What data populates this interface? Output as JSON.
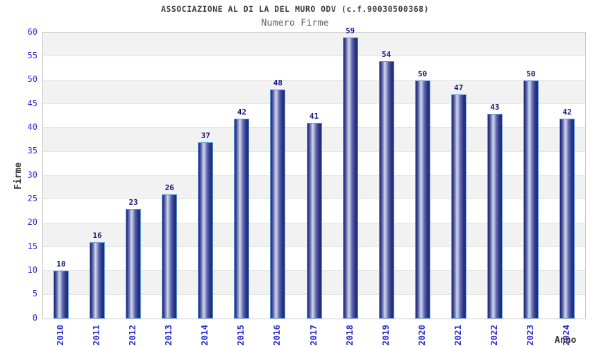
{
  "title": "ASSOCIAZIONE AL DI LA DEL MURO ODV (c.f.90030500368)",
  "subtitle": "Numero Firme",
  "chart_data": {
    "type": "bar",
    "title": "ASSOCIAZIONE AL DI LA DEL MURO ODV (c.f.90030500368)",
    "subtitle": "Numero Firme",
    "categories": [
      "2010",
      "2011",
      "2012",
      "2013",
      "2014",
      "2015",
      "2016",
      "2017",
      "2018",
      "2019",
      "2020",
      "2021",
      "2022",
      "2023",
      "2024"
    ],
    "values": [
      10,
      16,
      23,
      26,
      37,
      42,
      48,
      41,
      59,
      54,
      50,
      47,
      43,
      50,
      42
    ],
    "xlabel": "Anno",
    "ylabel": "Firme",
    "ylim": [
      0,
      60
    ],
    "ytick_step": 5,
    "yticks": [
      0,
      5,
      10,
      15,
      20,
      25,
      30,
      35,
      40,
      45,
      50,
      55,
      60
    ],
    "grid": "horizontal alternating bands every 5 units",
    "legend": "none",
    "value_labels": "above each bar"
  },
  "colors": {
    "title_color": "#3c3c3c",
    "subtitle_color": "#666666",
    "axis_title_color": "#3a3a3a",
    "tick_label_blue": "#2b2bd0",
    "value_label_navy": "#13137d",
    "bar_border": "#5e9ad8",
    "bar_dark": "#1e2878",
    "bar_mid": "#5a64ab",
    "bar_highlight": "#d6daee",
    "band_gray": "#f2f2f2",
    "band_white": "#ffffff",
    "grid_line": "#e3e3e3",
    "plot_border": "#c9c9c9"
  }
}
